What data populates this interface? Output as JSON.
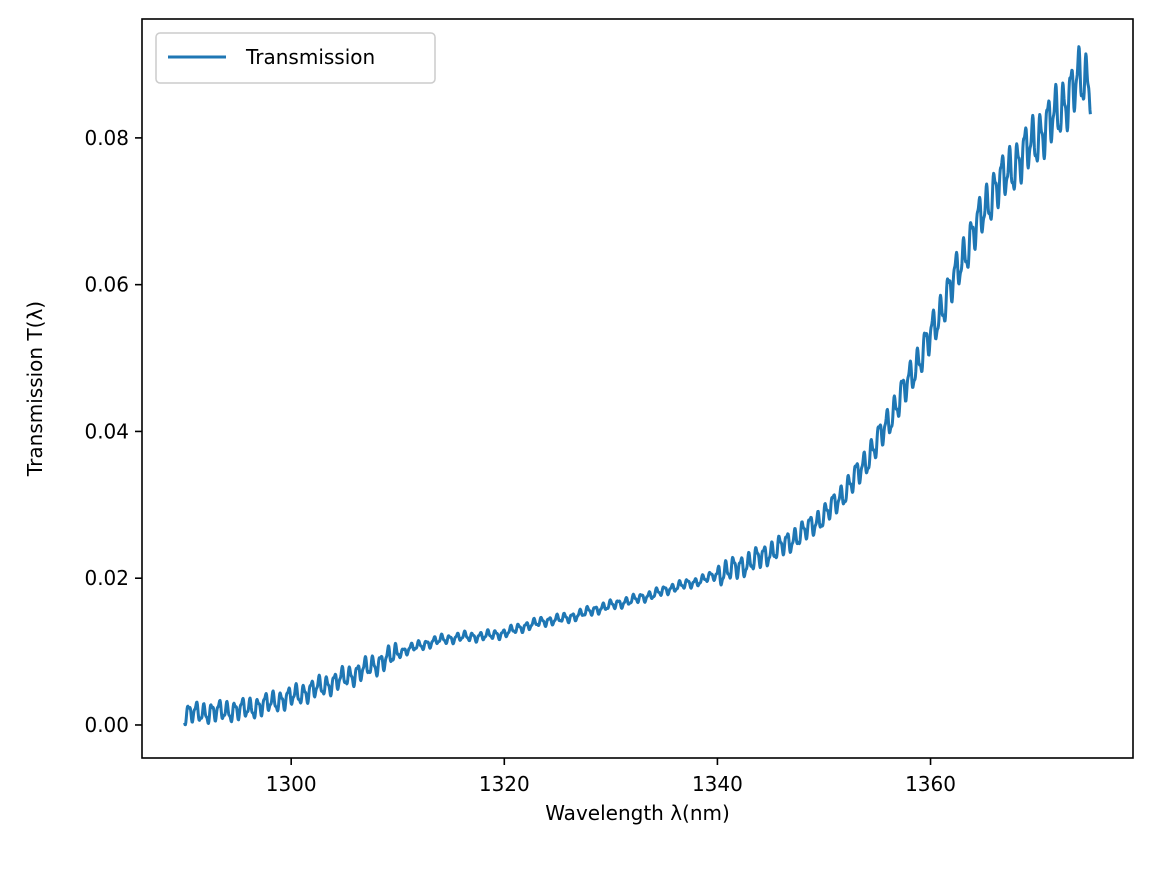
{
  "chart_data": {
    "type": "line",
    "title": "",
    "xlabel": "Wavelength λ(nm)",
    "ylabel": "Transmission T(λ)",
    "xlim": [
      1286,
      1379
    ],
    "ylim": [
      -0.0045,
      0.0962
    ],
    "xticks": [
      1300,
      1320,
      1340,
      1360
    ],
    "xtick_labels": [
      "1300",
      "1320",
      "1340",
      "1360"
    ],
    "yticks": [
      0.0,
      0.02,
      0.04,
      0.06,
      0.08
    ],
    "ytick_labels": [
      "0.00",
      "0.02",
      "0.04",
      "0.06",
      "0.08"
    ],
    "grid": false,
    "legend": {
      "position": "top-left"
    },
    "series": [
      {
        "name": "Transmission",
        "color": "#1f77b4",
        "x": [
          1290,
          1292,
          1294,
          1296,
          1298,
          1300,
          1302,
          1304,
          1306,
          1308,
          1310,
          1312,
          1314,
          1316,
          1318,
          1320,
          1322,
          1324,
          1326,
          1328,
          1330,
          1332,
          1334,
          1336,
          1338,
          1340,
          1342,
          1344,
          1346,
          1348,
          1350,
          1352,
          1354,
          1356,
          1358,
          1360,
          1362,
          1364,
          1366,
          1368,
          1370,
          1372,
          1374,
          1375
        ],
        "y": [
          0.0015,
          0.0017,
          0.0019,
          0.0022,
          0.003,
          0.0038,
          0.0048,
          0.0058,
          0.007,
          0.0083,
          0.0098,
          0.0108,
          0.0116,
          0.012,
          0.0121,
          0.0125,
          0.0135,
          0.0142,
          0.0146,
          0.0155,
          0.0163,
          0.017,
          0.0178,
          0.0188,
          0.0195,
          0.0205,
          0.0215,
          0.0228,
          0.0243,
          0.0262,
          0.0285,
          0.0318,
          0.036,
          0.0412,
          0.047,
          0.053,
          0.06,
          0.067,
          0.073,
          0.0765,
          0.08,
          0.0835,
          0.088,
          0.088
        ]
      }
    ]
  }
}
